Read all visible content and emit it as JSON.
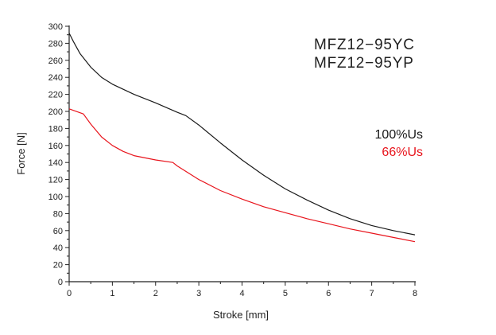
{
  "chart_data": {
    "type": "line",
    "title_lines": [
      "MFZ12−95YC",
      "MFZ12−95YP"
    ],
    "xlabel": "Stroke [mm]",
    "ylabel": "Force [N]",
    "xlim": [
      0,
      8
    ],
    "ylim": [
      0,
      300
    ],
    "xticks": [
      0,
      1,
      2,
      3,
      4,
      5,
      6,
      7,
      8
    ],
    "yticks": [
      0,
      20,
      40,
      60,
      80,
      100,
      120,
      140,
      160,
      180,
      200,
      220,
      240,
      260,
      280,
      300
    ],
    "grid": false,
    "legend_position": "right",
    "series": [
      {
        "name": "100%Us",
        "color": "#1a1a1a",
        "x": [
          0,
          0.1,
          0.25,
          0.5,
          0.75,
          1,
          1.5,
          2,
          2.5,
          2.7,
          3,
          3.5,
          4,
          4.5,
          5,
          5.5,
          6,
          6.5,
          7,
          7.5,
          8
        ],
        "y": [
          292,
          282,
          268,
          252,
          240,
          232,
          220,
          210,
          199,
          195,
          184,
          163,
          143,
          125,
          109,
          96,
          84,
          74,
          66,
          60,
          55
        ]
      },
      {
        "name": "66%Us",
        "color": "#e8141c",
        "x": [
          0,
          0.33,
          0.5,
          0.75,
          1,
          1.25,
          1.5,
          2,
          2.4,
          2.5,
          3,
          3.5,
          4,
          4.5,
          5,
          5.5,
          6,
          6.5,
          7,
          7.5,
          8
        ],
        "y": [
          203,
          197,
          185,
          170,
          160,
          153,
          148,
          143,
          140,
          136,
          120,
          107,
          97,
          88,
          81,
          74,
          68,
          62,
          57,
          52,
          47
        ]
      }
    ]
  }
}
